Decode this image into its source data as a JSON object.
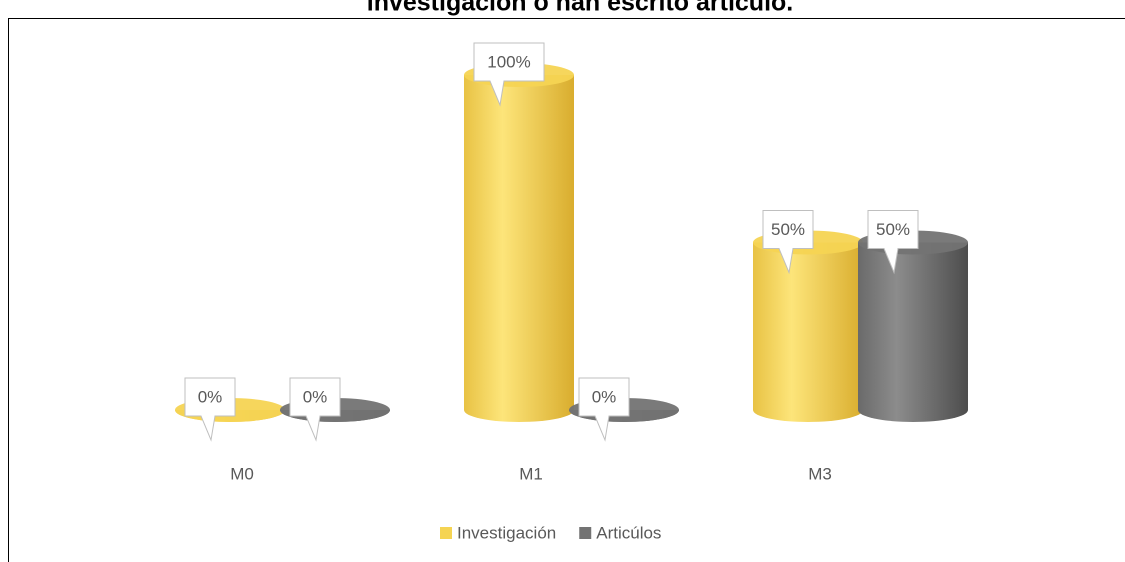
{
  "chart_data": {
    "type": "bar",
    "title": "investigación o han escrito artículo.",
    "categories": [
      "M0",
      "M1",
      "M3"
    ],
    "series": [
      {
        "name": "Investigación",
        "color": "#f5d453",
        "values": [
          0,
          100,
          50
        ],
        "value_labels": [
          "0%",
          "100%",
          "50%"
        ]
      },
      {
        "name": "Articúlos",
        "color": "#737373",
        "values": [
          0,
          0,
          50
        ],
        "value_labels": [
          "0%",
          "0%",
          "50%"
        ]
      }
    ]
  }
}
